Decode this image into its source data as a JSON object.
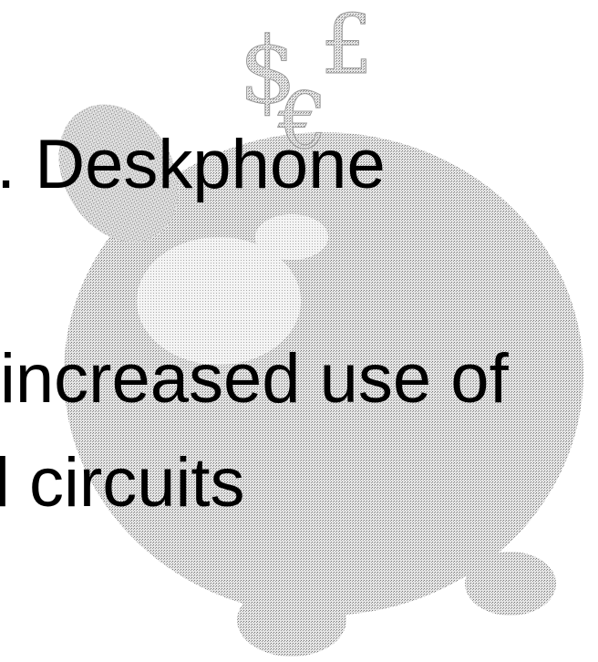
{
  "symbols": [
    "$",
    "£",
    "€"
  ],
  "lines": [
    ". Deskphone",
    "increased use of",
    "l circuits"
  ]
}
